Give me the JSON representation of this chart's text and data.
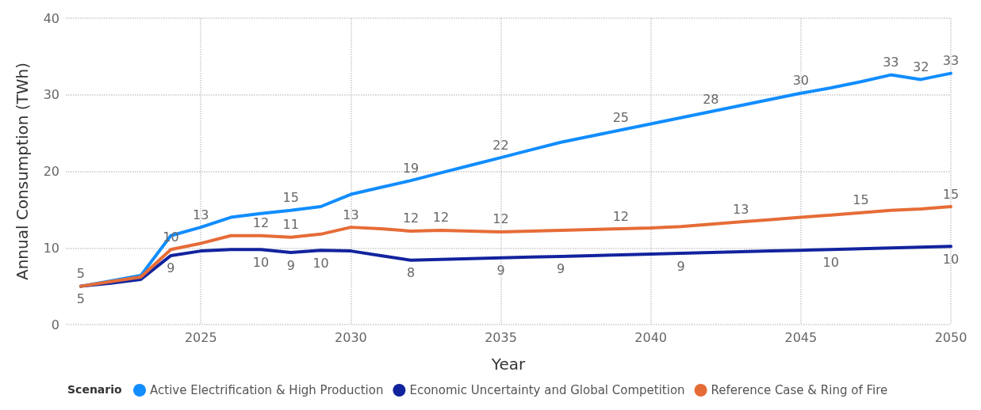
{
  "chart_data": {
    "type": "line",
    "xlabel": "Year",
    "ylabel": "Annual Consumption (TWh)",
    "legend_title": "Scenario",
    "legend": "bottom",
    "grid": true,
    "marker": "none",
    "line_style": "solid",
    "x": [
      2021,
      2022,
      2023,
      2024,
      2025,
      2026,
      2027,
      2028,
      2029,
      2030,
      2031,
      2032,
      2033,
      2034,
      2035,
      2036,
      2037,
      2038,
      2039,
      2040,
      2041,
      2042,
      2043,
      2044,
      2045,
      2046,
      2047,
      2048,
      2049,
      2050
    ],
    "xlim": [
      2020.5,
      2050
    ],
    "xticks": [
      2025,
      2030,
      2035,
      2040,
      2045,
      2050
    ],
    "ylim": [
      0,
      40
    ],
    "yticks": [
      0,
      10,
      20,
      30,
      40
    ],
    "series": [
      {
        "name": "Active Electrification & High Production",
        "color": "#118dff",
        "values": [
          5,
          5.7,
          6.4,
          11.6,
          12.7,
          14.0,
          14.5,
          14.9,
          15.4,
          17.0,
          17.9,
          18.8,
          19.8,
          20.8,
          21.8,
          22.8,
          23.8,
          24.6,
          25.4,
          26.2,
          27.0,
          27.8,
          28.6,
          29.4,
          30.2,
          30.9,
          31.7,
          32.6,
          32.0,
          32.8
        ],
        "value_labels": [
          "5",
          null,
          null,
          null,
          "13",
          null,
          null,
          "15",
          null,
          null,
          null,
          "19",
          null,
          null,
          "22",
          null,
          null,
          null,
          "25",
          null,
          null,
          "28",
          null,
          null,
          "30",
          null,
          null,
          "33",
          "32",
          "33"
        ]
      },
      {
        "name": "Economic Uncertainty and Global Competition",
        "color": "#12239e",
        "values": [
          5,
          5.4,
          5.9,
          9.0,
          9.6,
          9.8,
          9.8,
          9.4,
          9.7,
          9.6,
          9.0,
          8.4,
          8.5,
          8.6,
          8.7,
          8.8,
          8.9,
          9.0,
          9.1,
          9.2,
          9.3,
          9.4,
          9.5,
          9.6,
          9.7,
          9.8,
          9.9,
          10.0,
          10.1,
          10.2
        ],
        "value_labels": [
          "5",
          null,
          null,
          "9",
          null,
          null,
          "10",
          "9",
          "10",
          null,
          null,
          "8",
          null,
          null,
          "9",
          null,
          "9",
          null,
          null,
          null,
          "9",
          null,
          null,
          null,
          null,
          "10",
          null,
          null,
          null,
          "10"
        ]
      },
      {
        "name": "Reference Case & Ring of Fire",
        "color": "#e66c37",
        "values": [
          5,
          5.6,
          6.2,
          9.8,
          10.6,
          11.6,
          11.6,
          11.4,
          11.8,
          12.7,
          12.5,
          12.2,
          12.3,
          12.2,
          12.1,
          12.2,
          12.3,
          12.4,
          12.5,
          12.6,
          12.8,
          13.1,
          13.4,
          13.7,
          14.0,
          14.3,
          14.6,
          14.9,
          15.1,
          15.4
        ],
        "value_labels": [
          null,
          null,
          null,
          "10",
          null,
          null,
          "12",
          "11",
          null,
          "13",
          null,
          "12",
          "12",
          null,
          "12",
          null,
          null,
          null,
          "12",
          null,
          null,
          null,
          "13",
          null,
          null,
          null,
          "15",
          null,
          null,
          "15"
        ]
      }
    ]
  }
}
